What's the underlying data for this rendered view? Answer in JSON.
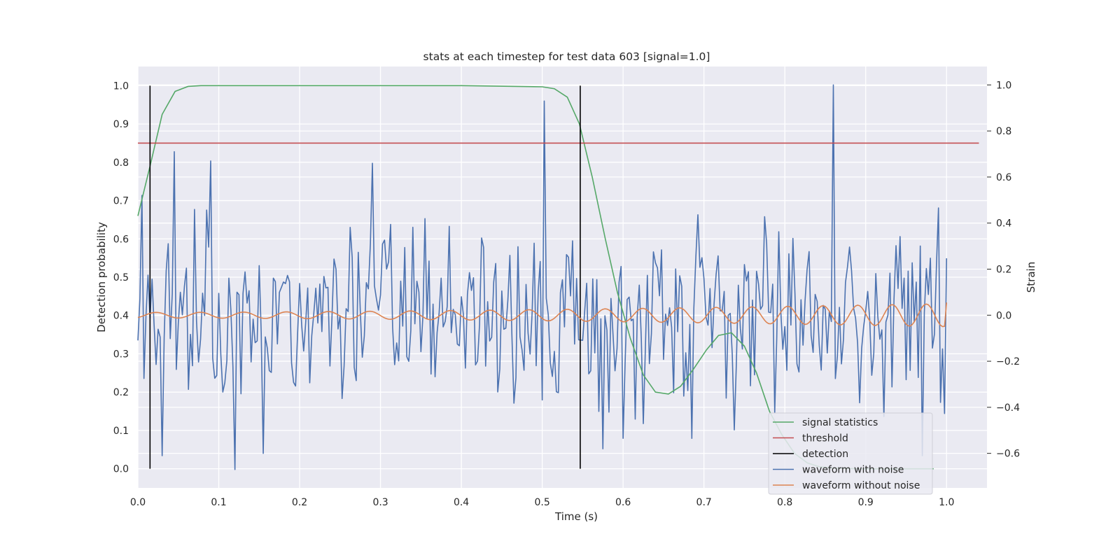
{
  "chart_data": {
    "type": "line",
    "title": "stats at each timestep for test data 603 [signal=1.0]",
    "xlabel": "Time (s)",
    "ylabel": "Detection probability",
    "y2label": "Strain",
    "xlim": [
      0.0,
      1.05
    ],
    "ylim": [
      -0.05,
      1.05
    ],
    "y2lim": [
      -0.75,
      1.08
    ],
    "xticks": [
      "0.0",
      "0.1",
      "0.2",
      "0.3",
      "0.4",
      "0.5",
      "0.6",
      "0.7",
      "0.8",
      "0.9",
      "1.0"
    ],
    "yticks": [
      "0.0",
      "0.1",
      "0.2",
      "0.3",
      "0.4",
      "0.5",
      "0.6",
      "0.7",
      "0.8",
      "0.9",
      "1.0"
    ],
    "y2ticks": [
      "−0.6",
      "−0.4",
      "−0.2",
      "0.0",
      "0.2",
      "0.4",
      "0.6",
      "0.8",
      "1.0"
    ],
    "grid": true,
    "legend_position": "lower-right",
    "series": [
      {
        "name": "signal statistics",
        "color": "#55a868",
        "axis": "left",
        "x": [
          0.0,
          0.015,
          0.03,
          0.046,
          0.062,
          0.078,
          0.1,
          0.2,
          0.3,
          0.4,
          0.5,
          0.515,
          0.531,
          0.546,
          0.562,
          0.578,
          0.593,
          0.609,
          0.625,
          0.64,
          0.656,
          0.671,
          0.687,
          0.703,
          0.718,
          0.734,
          0.75,
          0.765,
          0.781,
          0.796,
          0.812,
          0.828,
          0.843,
          0.859,
          0.875,
          0.89,
          0.906,
          0.921,
          0.937,
          0.953,
          0.968,
          0.984
        ],
        "y": [
          0.66,
          0.79,
          0.925,
          0.985,
          0.998,
          1.0,
          1.0,
          1.0,
          1.0,
          1.0,
          0.997,
          0.992,
          0.97,
          0.9,
          0.76,
          0.6,
          0.46,
          0.34,
          0.245,
          0.2,
          0.195,
          0.215,
          0.26,
          0.31,
          0.348,
          0.355,
          0.32,
          0.25,
          0.15,
          0.09,
          0.04,
          0.015,
          0.005,
          0.002,
          0.001,
          0.0,
          0.0,
          0.0,
          0.0,
          0.0,
          0.0,
          0.0
        ]
      },
      {
        "name": "threshold",
        "color": "#c44e52",
        "axis": "left",
        "x": [
          0.0,
          1.04
        ],
        "y": [
          0.85,
          0.85
        ]
      },
      {
        "name": "detection",
        "color": "#000000",
        "axis": "left",
        "type": "vlines",
        "x": [
          0.015,
          0.547
        ],
        "y_range": [
          0.0,
          1.0
        ]
      },
      {
        "name": "waveform with noise",
        "color": "#4c72b0",
        "axis": "right",
        "dt": 0.0025,
        "duration": 1.0,
        "noise_amplitude": 0.22,
        "peaks": [
          {
            "x": 0.005,
            "y": 0.52
          },
          {
            "x": 0.046,
            "y": 0.71
          },
          {
            "x": 0.091,
            "y": 0.67
          },
          {
            "x": 0.12,
            "y": -0.67
          },
          {
            "x": 0.29,
            "y": 0.66
          },
          {
            "x": 0.503,
            "y": 0.93
          },
          {
            "x": 0.86,
            "y": 1.0
          },
          {
            "x": 0.97,
            "y": -0.61
          },
          {
            "x": 0.03,
            "y": -0.61
          },
          {
            "x": 0.155,
            "y": -0.6
          },
          {
            "x": 0.576,
            "y": -0.58
          }
        ]
      },
      {
        "name": "waveform without noise",
        "color": "#dd8452",
        "axis": "right",
        "dt": 0.0025,
        "duration": 1.0,
        "amplitude_start": 0.012,
        "amplitude_end": 0.05,
        "frequency_start": 18,
        "frequency_end": 24,
        "end_value": 0.055
      }
    ]
  }
}
